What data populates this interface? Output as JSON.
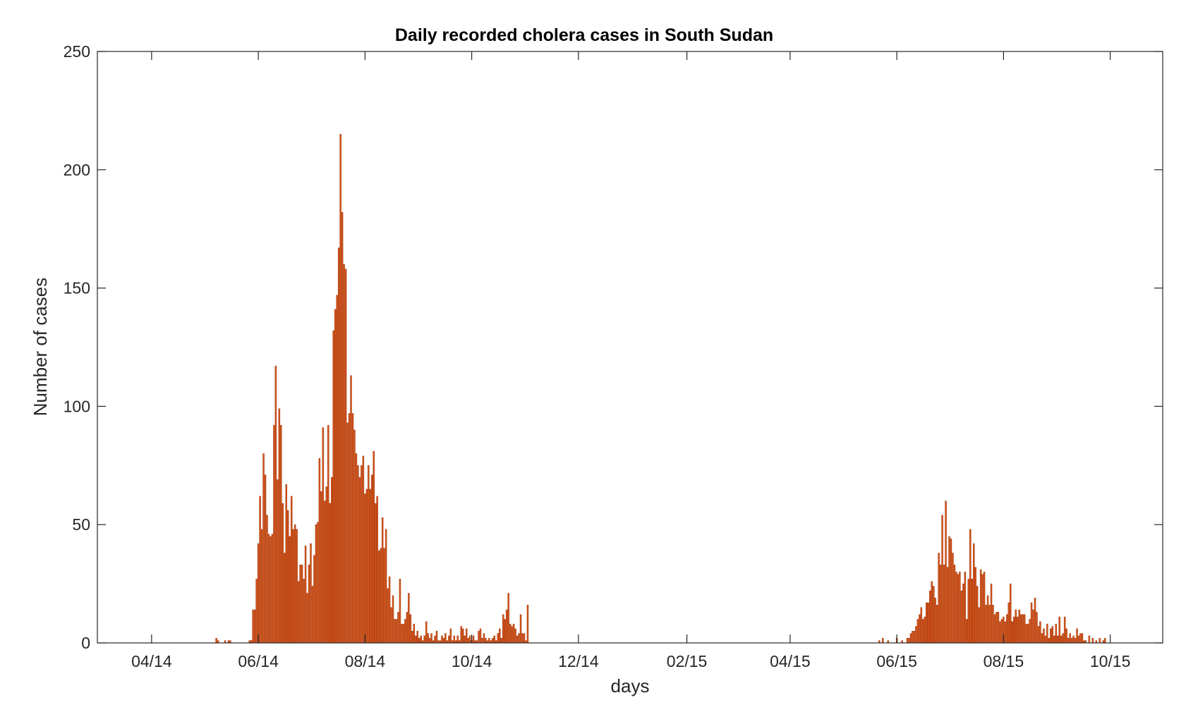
{
  "chart_data": {
    "type": "bar",
    "title": "Daily recorded cholera cases in South Sudan",
    "xlabel": "days",
    "ylabel": "Number of cases",
    "x_range": [
      "2014-03-01",
      "2015-10-31"
    ],
    "ylim": [
      0,
      250
    ],
    "yticks": [
      0,
      50,
      100,
      150,
      200,
      250
    ],
    "xticks": [
      {
        "date": "2014-04-01",
        "label": "04/14"
      },
      {
        "date": "2014-06-01",
        "label": "06/14"
      },
      {
        "date": "2014-08-01",
        "label": "08/14"
      },
      {
        "date": "2014-10-01",
        "label": "10/14"
      },
      {
        "date": "2014-12-01",
        "label": "12/14"
      },
      {
        "date": "2015-02-01",
        "label": "02/15"
      },
      {
        "date": "2015-04-01",
        "label": "04/15"
      },
      {
        "date": "2015-06-01",
        "label": "06/15"
      },
      {
        "date": "2015-08-01",
        "label": "08/15"
      },
      {
        "date": "2015-10-01",
        "label": "10/15"
      }
    ],
    "grid": false,
    "bar_color": "#D95319",
    "series": [
      {
        "segments": [
          {
            "start": "2014-05-08",
            "values": [
              2,
              1,
              0,
              0,
              0,
              1,
              0,
              1,
              1,
              0,
              0,
              0,
              0,
              0,
              0,
              0,
              0,
              0,
              0,
              1,
              1,
              14,
              14,
              27,
              42,
              62,
              48,
              80,
              71,
              54,
              46,
              45,
              46,
              92,
              117,
              69,
              99,
              92,
              59,
              38,
              67,
              56,
              45,
              62,
              48,
              50,
              48,
              26,
              33,
              33,
              27,
              41,
              21,
              33,
              42,
              24,
              37,
              50,
              51,
              78,
              64,
              91,
              60,
              66,
              92,
              59,
              70,
              132,
              141,
              147,
              167,
              215,
              182,
              160,
              158,
              93,
              97,
              113,
              97,
              90,
              80,
              75,
              70,
              75,
              79,
              63,
              65,
              75,
              65,
              71,
              81,
              59,
              62,
              39,
              40,
              53,
              40,
              48,
              23,
              28,
              15,
              20,
              10,
              10,
              13,
              27,
              8,
              8,
              10,
              13,
              21,
              12,
              5,
              8,
              3,
              5,
              2,
              3,
              1,
              3,
              9,
              4,
              2,
              4,
              1,
              3,
              5,
              1,
              1,
              3,
              2,
              4,
              1,
              3,
              6,
              1,
              3,
              1,
              3,
              1,
              7,
              6,
              3,
              6,
              2,
              3,
              1,
              3,
              1,
              1,
              5,
              6,
              2,
              4,
              2,
              1,
              2,
              1,
              2,
              3,
              1,
              4,
              6,
              2,
              12,
              10,
              14,
              21,
              8,
              7,
              8,
              6,
              3,
              4,
              12,
              4,
              4,
              1,
              16
            ]
          }
        ]
      },
      {
        "segments": [
          {
            "start": "2015-05-22",
            "values": [
              1,
              0,
              2,
              0,
              0,
              1,
              0,
              0,
              0,
              0,
              2,
              0,
              0,
              1,
              0,
              0,
              2,
              2,
              4,
              5,
              5,
              7,
              10,
              12,
              15,
              10,
              11,
              17,
              17,
              22,
              26,
              24,
              19,
              16,
              38,
              33,
              54,
              33,
              60,
              32,
              45,
              44,
              38,
              33,
              30,
              29,
              30,
              22,
              25,
              30,
              10,
              27,
              48,
              27,
              42,
              32,
              24,
              15,
              31,
              29,
              30,
              16,
              20,
              16,
              25,
              16,
              12,
              13,
              13,
              9,
              10,
              11,
              9,
              12,
              17,
              25,
              9,
              11,
              14,
              11,
              14,
              12,
              12,
              12,
              8,
              8,
              10,
              17,
              14,
              19,
              13,
              7,
              9,
              4,
              6,
              3,
              8,
              2,
              6,
              7,
              3,
              8,
              3,
              11,
              3,
              4,
              11,
              6,
              2,
              4,
              2,
              3,
              2,
              6,
              3,
              4,
              4,
              1,
              1,
              0,
              3,
              0,
              2,
              0,
              1,
              0,
              2,
              0,
              1,
              2
            ]
          }
        ]
      }
    ]
  }
}
